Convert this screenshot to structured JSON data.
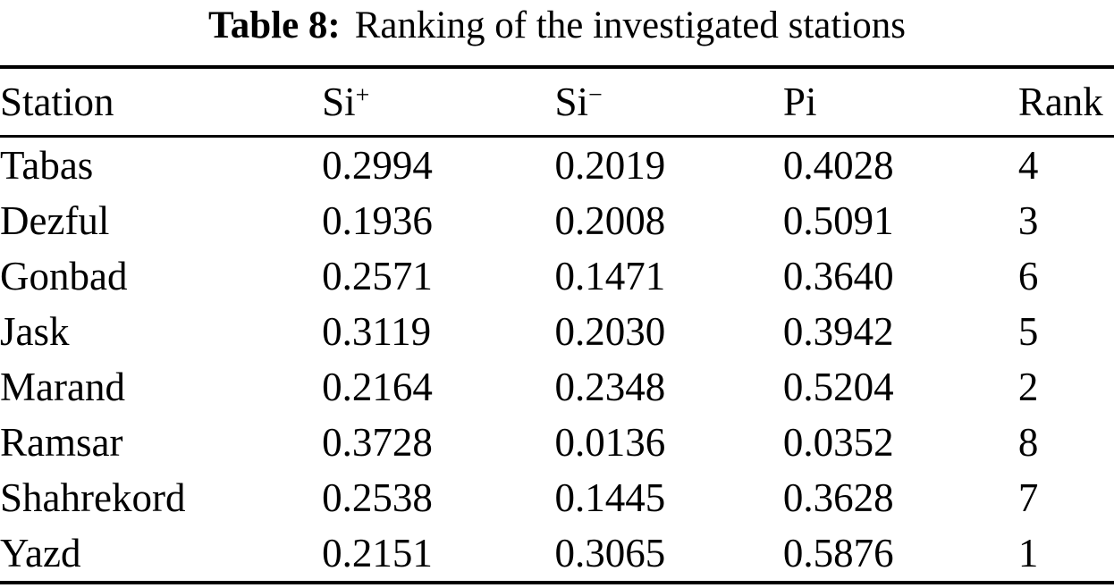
{
  "caption": {
    "label": "Table 8:",
    "text": "Ranking of the investigated stations"
  },
  "colors": {
    "background": "#ffffff",
    "text": "#000000",
    "rule": "#000000"
  },
  "chart_data": {
    "type": "table",
    "title": "Table 8: Ranking of the investigated stations",
    "columns": [
      {
        "base": "Station",
        "sup": ""
      },
      {
        "base": "Si",
        "sup": "+"
      },
      {
        "base": "Si",
        "sup": "−"
      },
      {
        "base": "Pi",
        "sup": ""
      },
      {
        "base": "Rank",
        "sup": ""
      }
    ],
    "rows": [
      {
        "station": "Tabas",
        "si_plus": "0.2994",
        "si_minus": "0.2019",
        "pi": "0.4028",
        "rank": "4"
      },
      {
        "station": "Dezful",
        "si_plus": "0.1936",
        "si_minus": "0.2008",
        "pi": "0.5091",
        "rank": "3"
      },
      {
        "station": "Gonbad",
        "si_plus": "0.2571",
        "si_minus": "0.1471",
        "pi": "0.3640",
        "rank": "6"
      },
      {
        "station": "Jask",
        "si_plus": "0.3119",
        "si_minus": "0.2030",
        "pi": "0.3942",
        "rank": "5"
      },
      {
        "station": "Marand",
        "si_plus": "0.2164",
        "si_minus": "0.2348",
        "pi": "0.5204",
        "rank": "2"
      },
      {
        "station": "Ramsar",
        "si_plus": "0.3728",
        "si_minus": "0.0136",
        "pi": "0.0352",
        "rank": "8"
      },
      {
        "station": "Shahrekord",
        "si_plus": "0.2538",
        "si_minus": "0.1445",
        "pi": "0.3628",
        "rank": "7"
      },
      {
        "station": "Yazd",
        "si_plus": "0.2151",
        "si_minus": "0.3065",
        "pi": "0.5876",
        "rank": "1"
      }
    ]
  }
}
